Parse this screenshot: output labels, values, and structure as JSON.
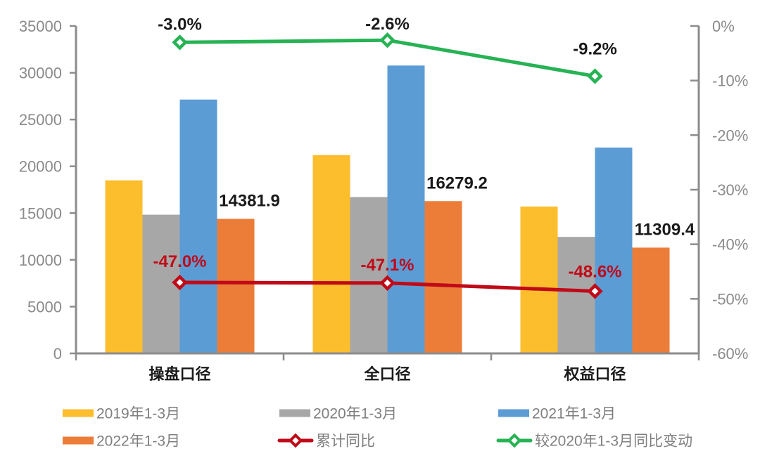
{
  "chart_data": {
    "type": "bar",
    "subtype": "grouped-bar-with-line-overlay",
    "title": "",
    "categories": [
      "操盘口径",
      "全口径",
      "权益口径"
    ],
    "bar_series": [
      {
        "name": "2019年1-3月",
        "color": "#FCBE2D",
        "values": [
          18500,
          21200,
          15700
        ]
      },
      {
        "name": "2020年1-3月",
        "color": "#A7A7A7",
        "values": [
          14827,
          16714,
          12455
        ]
      },
      {
        "name": "2021年1-3月",
        "color": "#5C9CD5",
        "values": [
          27136,
          30773,
          22003
        ]
      },
      {
        "name": "2022年1-3月",
        "color": "#EC7D39",
        "values": [
          14381.9,
          16279.2,
          11309.4
        ],
        "labels": [
          "14381.9",
          "16279.2",
          "11309.4"
        ],
        "label_color": "#1A1A1A"
      }
    ],
    "line_series": [
      {
        "name": "累计同比",
        "color": "#C00A18",
        "axis": "right",
        "values": [
          -47.0,
          -47.1,
          -48.6
        ],
        "labels": [
          "-47.0%",
          "-47.1%",
          "-48.6%"
        ],
        "label_color": "#C00A18"
      },
      {
        "name": "较2020年1-3月同比变动",
        "color": "#27B254",
        "axis": "right",
        "values": [
          -3.0,
          -2.6,
          -9.2
        ],
        "labels": [
          "-3.0%",
          "-2.6%",
          "-9.2%"
        ],
        "label_color": "#1A1A1A"
      }
    ],
    "left_axis": {
      "min": 0,
      "max": 35000,
      "step": 5000,
      "tick_labels": [
        "35000",
        "30000",
        "25000",
        "20000",
        "15000",
        "10000",
        "5000",
        "0"
      ]
    },
    "right_axis": {
      "min": -60,
      "max": 0,
      "step": 10,
      "tick_labels": [
        "0%",
        "-10%",
        "-20%",
        "-30%",
        "-40%",
        "-50%",
        "-60%"
      ]
    },
    "grid": false,
    "legend_position": "bottom",
    "legend": [
      {
        "label": "2019年1-3月",
        "marker": "swatch",
        "color": "#FCBE2D"
      },
      {
        "label": "2020年1-3月",
        "marker": "swatch",
        "color": "#A7A7A7"
      },
      {
        "label": "2021年1-3月",
        "marker": "swatch",
        "color": "#5C9CD5"
      },
      {
        "label": "2022年1-3月",
        "marker": "swatch",
        "color": "#EC7D39"
      },
      {
        "label": "累计同比",
        "marker": "line-diamond",
        "color": "#C00A18"
      },
      {
        "label": "较2020年1-3月同比变动",
        "marker": "line-diamond",
        "color": "#27B254"
      }
    ],
    "text_colors": {
      "axis_tick": "#8A8A8A",
      "legend_text": "#7F7F7F",
      "category_label": "#1A1A1A"
    }
  }
}
